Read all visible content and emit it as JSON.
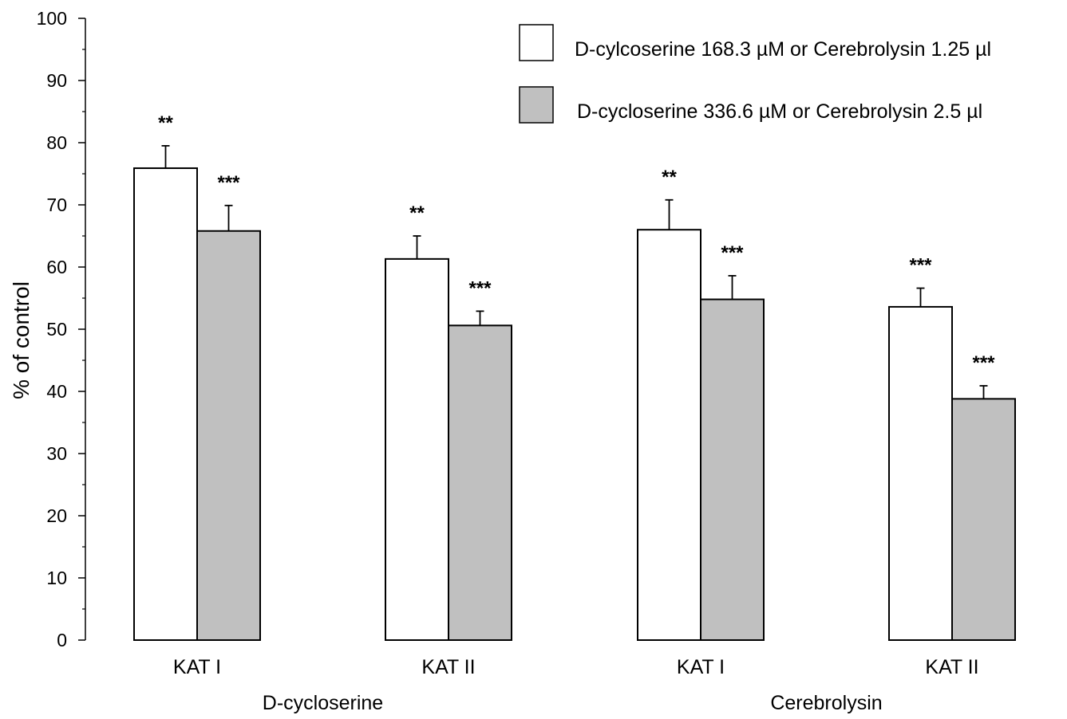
{
  "chart_data": {
    "type": "bar",
    "ylabel": "% of control",
    "xlabel": "",
    "ylim": [
      0,
      100
    ],
    "yticks": [
      0,
      10,
      20,
      30,
      40,
      50,
      60,
      70,
      80,
      90,
      100
    ],
    "grid": false,
    "legend_position": "top-right",
    "categories": [
      "KAT I",
      "KAT II",
      "KAT I",
      "KAT II"
    ],
    "groups": [
      {
        "label": "D-cycloserine",
        "categories": [
          "KAT I",
          "KAT II"
        ]
      },
      {
        "label": "Cerebrolysin",
        "categories": [
          "KAT I",
          "KAT II"
        ]
      }
    ],
    "series": [
      {
        "name": "D-cylcoserine 168.3 µM or Cerebrolysin 1.25 µl",
        "color": "#ffffff",
        "values": [
          75.9,
          61.3,
          66.0,
          53.6
        ],
        "errors": [
          3.6,
          3.7,
          4.8,
          3.0
        ],
        "significance": [
          "**",
          "**",
          "**",
          "***"
        ]
      },
      {
        "name": "D-cycloserine  336.6 µM or Cerebrolysin 2.5 µl",
        "color": "#c0c0c0",
        "values": [
          65.8,
          50.6,
          54.8,
          38.8
        ],
        "errors": [
          4.1,
          2.3,
          3.8,
          2.1
        ],
        "significance": [
          "***",
          "***",
          "***",
          "***"
        ]
      }
    ]
  }
}
